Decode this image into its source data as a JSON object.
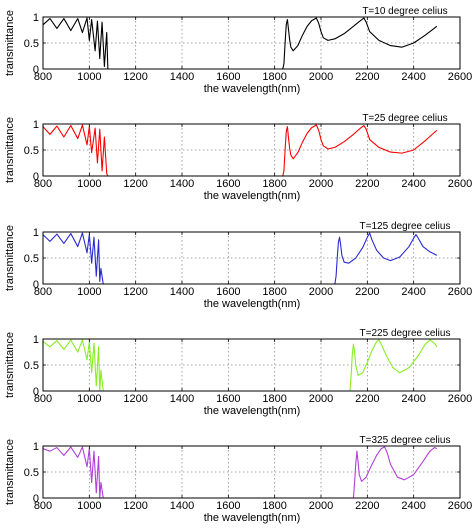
{
  "chart_data": [
    {
      "type": "line",
      "title": "T=10 degree celius",
      "xlabel": "the wavelength(nm)",
      "ylabel": "transmittance",
      "xlim": [
        800,
        2600
      ],
      "ylim": [
        0,
        1
      ],
      "xticks": [
        "800",
        "1000",
        "1200",
        "1400",
        "1600",
        "1800",
        "2000",
        "2200",
        "2400",
        "2600"
      ],
      "yticks": [
        "0",
        "0.5",
        "1"
      ],
      "grid": true,
      "series": [
        {
          "color": "#000000",
          "x": [
            800,
            830,
            860,
            890,
            920,
            950,
            970,
            990,
            1000,
            1010,
            1025,
            1035,
            1045,
            1055,
            1065,
            1075,
            1080,
            1100,
            1300,
            1500,
            1700,
            1835,
            1840,
            1845,
            1850,
            1855,
            1860,
            1865,
            1870,
            1880,
            1900,
            1920,
            1940,
            1960,
            1980,
            1990,
            2000,
            2010,
            2030,
            2060,
            2100,
            2140,
            2170,
            2185,
            2195,
            2210,
            2250,
            2300,
            2350,
            2400,
            2450,
            2500
          ],
          "y": [
            0.85,
            0.97,
            0.78,
            0.97,
            0.74,
            0.97,
            0.7,
            0.98,
            0.55,
            0.95,
            0.35,
            0.92,
            0.2,
            0.9,
            0.05,
            0.7,
            0,
            0,
            0,
            0,
            0,
            0,
            0.1,
            0.5,
            0.85,
            0.95,
            0.75,
            0.55,
            0.42,
            0.35,
            0.45,
            0.65,
            0.82,
            0.93,
            0.98,
            0.88,
            0.72,
            0.6,
            0.55,
            0.58,
            0.68,
            0.82,
            0.93,
            0.98,
            0.9,
            0.72,
            0.55,
            0.45,
            0.42,
            0.5,
            0.65,
            0.82
          ]
        }
      ]
    },
    {
      "type": "line",
      "title": "T=25 degree celius",
      "xlabel": "the wavelength(nm)",
      "ylabel": "transmittance",
      "xlim": [
        800,
        2600
      ],
      "ylim": [
        0,
        1
      ],
      "xticks": [
        "800",
        "1000",
        "1200",
        "1400",
        "1600",
        "1800",
        "2000",
        "2200",
        "2400",
        "2600"
      ],
      "yticks": [
        "0",
        "0.5",
        "1"
      ],
      "grid": true,
      "series": [
        {
          "color": "#ff0000",
          "x": [
            800,
            830,
            860,
            890,
            920,
            950,
            970,
            990,
            1000,
            1010,
            1025,
            1035,
            1045,
            1055,
            1065,
            1075,
            1080,
            1100,
            1300,
            1500,
            1700,
            1835,
            1840,
            1845,
            1850,
            1855,
            1860,
            1865,
            1870,
            1880,
            1900,
            1920,
            1940,
            1960,
            1980,
            1990,
            2000,
            2010,
            2030,
            2060,
            2100,
            2140,
            2170,
            2185,
            2195,
            2210,
            2250,
            2300,
            2350,
            2400,
            2450,
            2500
          ],
          "y": [
            0.95,
            0.8,
            0.96,
            0.75,
            0.97,
            0.72,
            0.98,
            0.6,
            0.95,
            0.45,
            0.92,
            0.25,
            0.9,
            0.1,
            0.75,
            0.05,
            0,
            0,
            0,
            0,
            0,
            0,
            0.1,
            0.5,
            0.85,
            0.95,
            0.72,
            0.52,
            0.4,
            0.33,
            0.45,
            0.65,
            0.82,
            0.93,
            0.98,
            0.88,
            0.7,
            0.58,
            0.52,
            0.55,
            0.66,
            0.8,
            0.92,
            0.97,
            0.9,
            0.7,
            0.55,
            0.46,
            0.44,
            0.5,
            0.68,
            0.88
          ]
        }
      ]
    },
    {
      "type": "line",
      "title": "T=125 degree celius",
      "xlabel": "the wavelength(nm)",
      "ylabel": "transmittance",
      "xlim": [
        800,
        2600
      ],
      "ylim": [
        0,
        1
      ],
      "xticks": [
        "800",
        "1000",
        "1200",
        "1400",
        "1600",
        "1800",
        "2000",
        "2200",
        "2400",
        "2600"
      ],
      "yticks": [
        "0",
        "0.5",
        "1"
      ],
      "grid": true,
      "series": [
        {
          "color": "#2a2ad0",
          "x": [
            800,
            830,
            860,
            890,
            920,
            950,
            970,
            990,
            1000,
            1010,
            1020,
            1030,
            1040,
            1045,
            1050,
            1060,
            1300,
            1600,
            1900,
            2060,
            2065,
            2070,
            2075,
            2080,
            2085,
            2090,
            2100,
            2120,
            2150,
            2180,
            2200,
            2210,
            2220,
            2240,
            2270,
            2300,
            2340,
            2380,
            2400,
            2410,
            2420,
            2440,
            2470,
            2500
          ],
          "y": [
            0.95,
            0.82,
            0.96,
            0.78,
            0.97,
            0.72,
            0.98,
            0.6,
            0.95,
            0.4,
            0.9,
            0.15,
            0.85,
            0.05,
            0.3,
            0,
            0,
            0,
            0,
            0,
            0.15,
            0.5,
            0.8,
            0.9,
            0.75,
            0.55,
            0.42,
            0.4,
            0.5,
            0.7,
            0.9,
            0.98,
            0.85,
            0.65,
            0.5,
            0.45,
            0.52,
            0.72,
            0.88,
            0.95,
            0.88,
            0.72,
            0.62,
            0.55
          ]
        }
      ]
    },
    {
      "type": "line",
      "title": "T=225 degree celius",
      "xlabel": "the wavelength(nm)",
      "ylabel": "transmittance",
      "xlim": [
        800,
        2600
      ],
      "ylim": [
        0,
        1
      ],
      "xticks": [
        "800",
        "1000",
        "1200",
        "1400",
        "1600",
        "1800",
        "2000",
        "2200",
        "2400",
        "2600"
      ],
      "yticks": [
        "0",
        "0.5",
        "1"
      ],
      "grid": true,
      "series": [
        {
          "color": "#88ee22",
          "x": [
            800,
            830,
            860,
            890,
            920,
            950,
            970,
            990,
            1000,
            1010,
            1020,
            1030,
            1040,
            1045,
            1050,
            1060,
            1300,
            1600,
            1900,
            2100,
            2125,
            2130,
            2135,
            2140,
            2145,
            2150,
            2160,
            2180,
            2200,
            2220,
            2240,
            2250,
            2260,
            2280,
            2310,
            2340,
            2380,
            2420,
            2450,
            2470,
            2490,
            2500
          ],
          "y": [
            0.95,
            0.85,
            0.97,
            0.8,
            0.98,
            0.75,
            0.98,
            0.6,
            0.95,
            0.35,
            0.92,
            0.1,
            0.85,
            0,
            0.4,
            0,
            0,
            0,
            0,
            0,
            0,
            0.3,
            0.7,
            0.9,
            0.75,
            0.5,
            0.3,
            0.35,
            0.55,
            0.78,
            0.95,
            0.98,
            0.9,
            0.7,
            0.45,
            0.35,
            0.45,
            0.68,
            0.9,
            0.98,
            0.92,
            0.85
          ]
        }
      ]
    },
    {
      "type": "line",
      "title": "T=325 degree celius",
      "xlabel": "the wavelength(nm)",
      "ylabel": "transmittance",
      "xlim": [
        800,
        2600
      ],
      "ylim": [
        0,
        1
      ],
      "xticks": [
        "800",
        "1000",
        "1200",
        "1400",
        "1600",
        "1800",
        "2000",
        "2200",
        "2400",
        "2600"
      ],
      "yticks": [
        "0",
        "0.5",
        "1"
      ],
      "grid": true,
      "series": [
        {
          "color": "#b040d8",
          "x": [
            800,
            830,
            860,
            890,
            920,
            950,
            970,
            990,
            1000,
            1010,
            1020,
            1030,
            1040,
            1045,
            1050,
            1060,
            1300,
            1600,
            1900,
            2120,
            2140,
            2145,
            2150,
            2155,
            2160,
            2165,
            2175,
            2195,
            2215,
            2240,
            2260,
            2275,
            2285,
            2300,
            2330,
            2360,
            2400,
            2440,
            2470,
            2490,
            2500
          ],
          "y": [
            0.95,
            0.9,
            0.97,
            0.82,
            0.98,
            0.78,
            0.98,
            0.6,
            0.95,
            0.3,
            0.9,
            0.1,
            0.8,
            0,
            0.3,
            0,
            0,
            0,
            0,
            0,
            0,
            0.3,
            0.65,
            0.9,
            0.7,
            0.45,
            0.32,
            0.4,
            0.6,
            0.82,
            0.95,
            0.98,
            0.88,
            0.65,
            0.4,
            0.35,
            0.45,
            0.7,
            0.9,
            0.97,
            0.95
          ]
        }
      ]
    }
  ]
}
